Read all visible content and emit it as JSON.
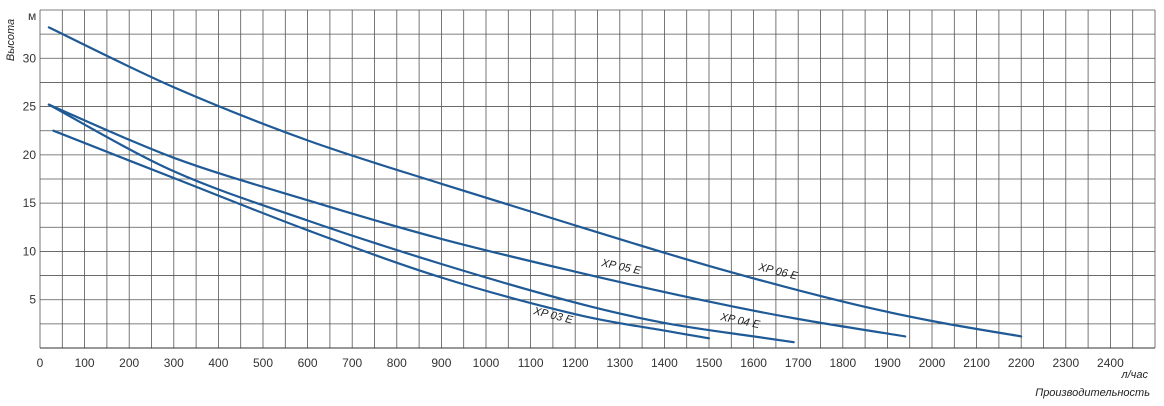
{
  "chart_data": {
    "type": "line",
    "xlabel": "Производительность",
    "x_unit": "л/час",
    "ylabel": "Высота",
    "y_unit": "м",
    "xlim": [
      0,
      2500
    ],
    "ylim": [
      0,
      35
    ],
    "x_ticks": [
      0,
      100,
      200,
      300,
      400,
      500,
      600,
      700,
      800,
      900,
      1000,
      1100,
      1200,
      1300,
      1400,
      1500,
      1600,
      1700,
      1800,
      1900,
      2000,
      2100,
      2200,
      2300,
      2400
    ],
    "y_ticks": [
      5,
      10,
      15,
      20,
      25,
      30
    ],
    "grid": true,
    "line_color": "#1f5a96",
    "series": [
      {
        "name": "XP 06 E",
        "x": [
          20,
          300,
          600,
          900,
          1200,
          1500,
          1800,
          2000,
          2200
        ],
        "y": [
          33.2,
          27,
          21.5,
          17,
          12.7,
          8.5,
          4.8,
          2.8,
          1.2
        ]
      },
      {
        "name": "XP 05 E",
        "x": [
          20,
          300,
          600,
          900,
          1200,
          1500,
          1700,
          1940
        ],
        "y": [
          25.2,
          19.7,
          15.3,
          11.3,
          7.9,
          4.8,
          3,
          1.2
        ]
      },
      {
        "name": "XP 04 E",
        "x": [
          20,
          300,
          600,
          900,
          1200,
          1400,
          1600,
          1690
        ],
        "y": [
          25.2,
          18.3,
          13.2,
          8.7,
          4.7,
          2.6,
          1.2,
          0.6
        ]
      },
      {
        "name": "XP 03 E",
        "x": [
          30,
          300,
          600,
          900,
          1200,
          1400,
          1500
        ],
        "y": [
          22.5,
          17.6,
          12.2,
          7.3,
          3.5,
          1.8,
          1
        ]
      }
    ]
  }
}
